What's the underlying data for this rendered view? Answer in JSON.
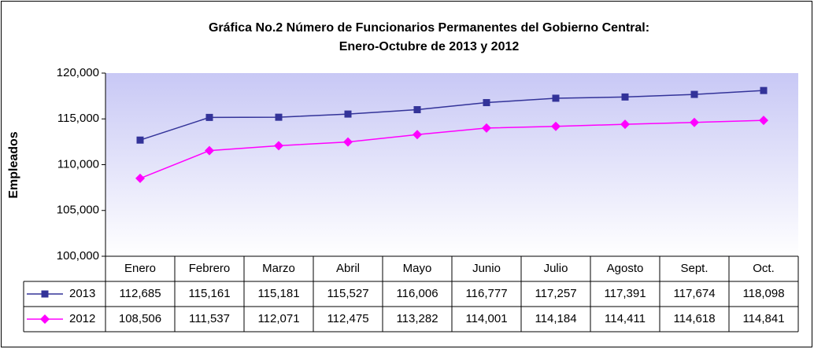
{
  "chart_data": {
    "type": "line",
    "title": [
      "Gráfica No.2 Número de Funcionarios Permanentes del Gobierno Central:",
      "Enero-Octubre de 2013 y 2012"
    ],
    "y_label": "Empleados",
    "categories": [
      "Enero",
      "Febrero",
      "Marzo",
      "Abril",
      "Mayo",
      "Junio",
      "Julio",
      "Agosto",
      "Sept.",
      "Oct."
    ],
    "series": [
      {
        "name": "2013",
        "color": "#333399",
        "marker": "square",
        "values": [
          112685,
          115161,
          115181,
          115527,
          116006,
          116777,
          117257,
          117391,
          117674,
          118098
        ],
        "value_labels": [
          "112,685",
          "115,161",
          "115,181",
          "115,527",
          "116,006",
          "116,777",
          "117,257",
          "117,391",
          "117,674",
          "118,098"
        ]
      },
      {
        "name": "2012",
        "color": "#ff00ff",
        "marker": "diamond",
        "values": [
          108506,
          111537,
          112071,
          112475,
          113282,
          114001,
          114184,
          114411,
          114618,
          114841
        ],
        "value_labels": [
          "108,506",
          "111,537",
          "112,071",
          "112,475",
          "113,282",
          "114,001",
          "114,184",
          "114,411",
          "114,618",
          "114,841"
        ]
      }
    ],
    "ylim": [
      100000,
      120000
    ],
    "yticks": [
      {
        "value": 100000,
        "label": "100,000"
      },
      {
        "value": 105000,
        "label": "105,000"
      },
      {
        "value": 110000,
        "label": "110,000"
      },
      {
        "value": 115000,
        "label": "115,000"
      },
      {
        "value": 120000,
        "label": "120,000"
      }
    ],
    "grid": false
  }
}
